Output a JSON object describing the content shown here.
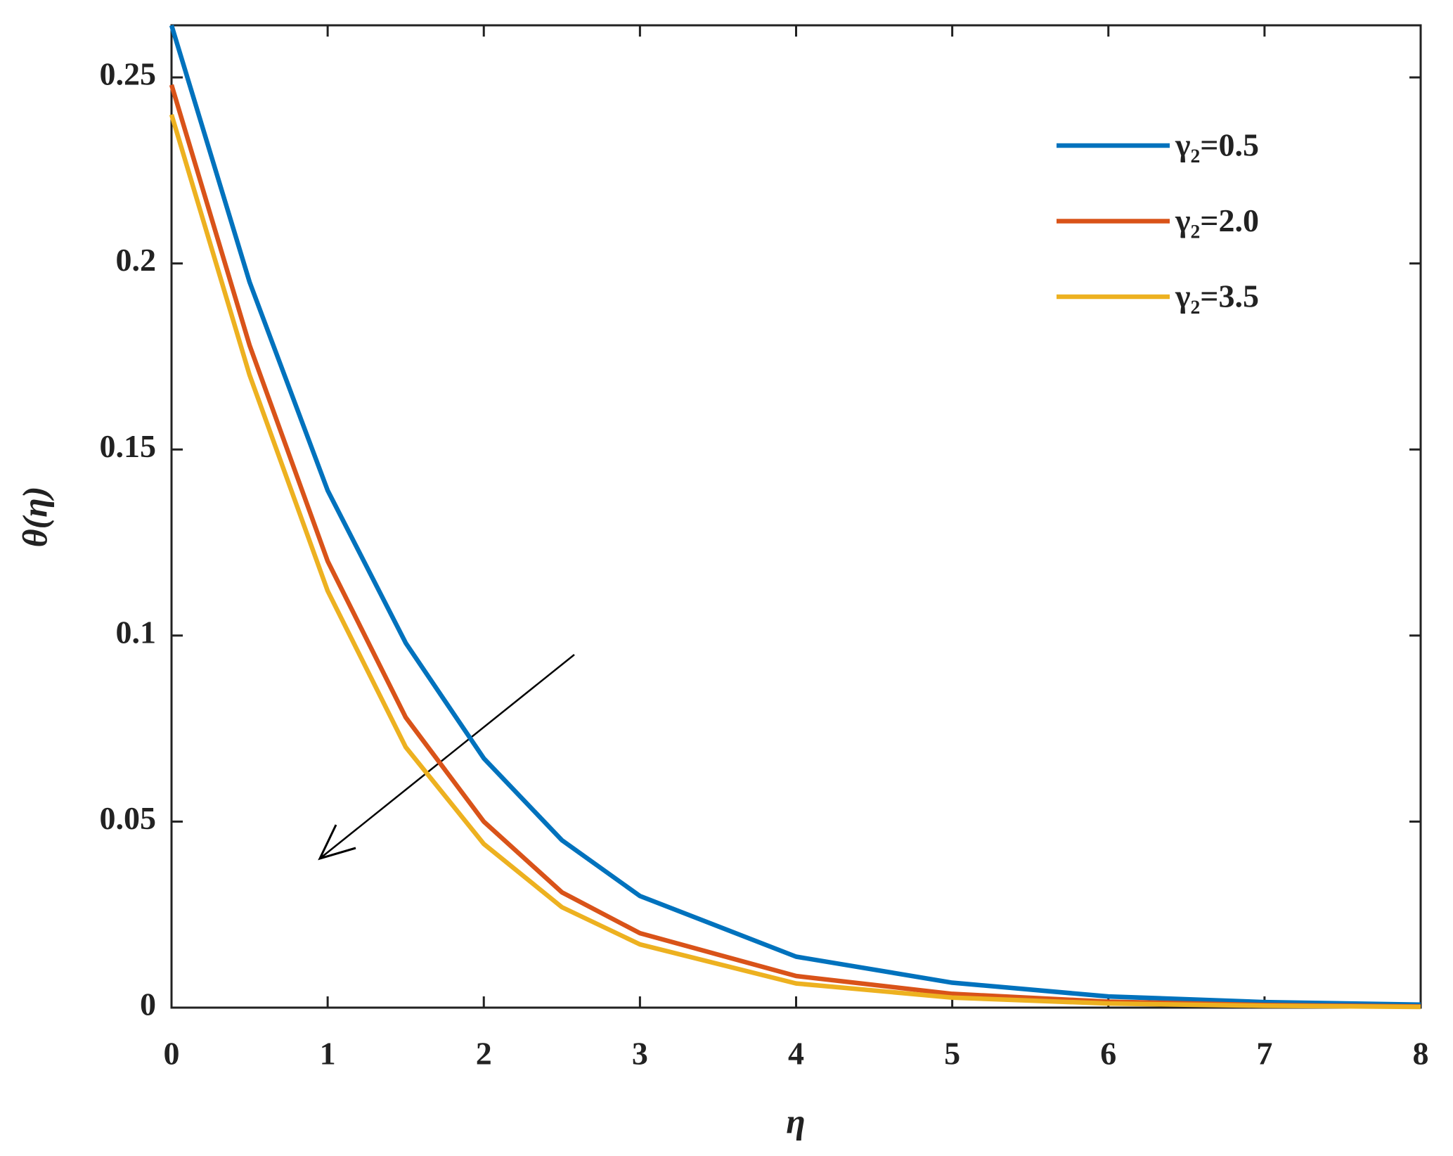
{
  "chart_data": {
    "type": "line",
    "xlabel": "η",
    "ylabel": "θ(η)",
    "x": [
      0,
      0.5,
      1,
      1.5,
      2,
      2.5,
      3,
      4,
      5,
      6,
      7,
      8
    ],
    "series": [
      {
        "name": "γ₂=0.5",
        "color": "#0072BD",
        "values": [
          0.264,
          0.195,
          0.139,
          0.098,
          0.067,
          0.045,
          0.03,
          0.0137,
          0.0067,
          0.003,
          0.0015,
          0.0008
        ]
      },
      {
        "name": "γ₂=2.0",
        "color": "#D95319",
        "values": [
          0.248,
          0.178,
          0.12,
          0.078,
          0.05,
          0.031,
          0.02,
          0.0085,
          0.0037,
          0.0016,
          0.0007,
          0.0003
        ]
      },
      {
        "name": "γ₂=3.5",
        "color": "#EDB120",
        "values": [
          0.24,
          0.17,
          0.112,
          0.07,
          0.044,
          0.027,
          0.017,
          0.0065,
          0.0027,
          0.0011,
          0.0005,
          0.0002
        ]
      }
    ],
    "xlim": [
      0,
      8
    ],
    "ylim": [
      0,
      0.264
    ],
    "xticks": [
      0,
      1,
      2,
      3,
      4,
      5,
      6,
      7,
      8
    ],
    "yticks": [
      0,
      0.05,
      0.1,
      0.15,
      0.2,
      0.25
    ],
    "legend": "upper right"
  }
}
